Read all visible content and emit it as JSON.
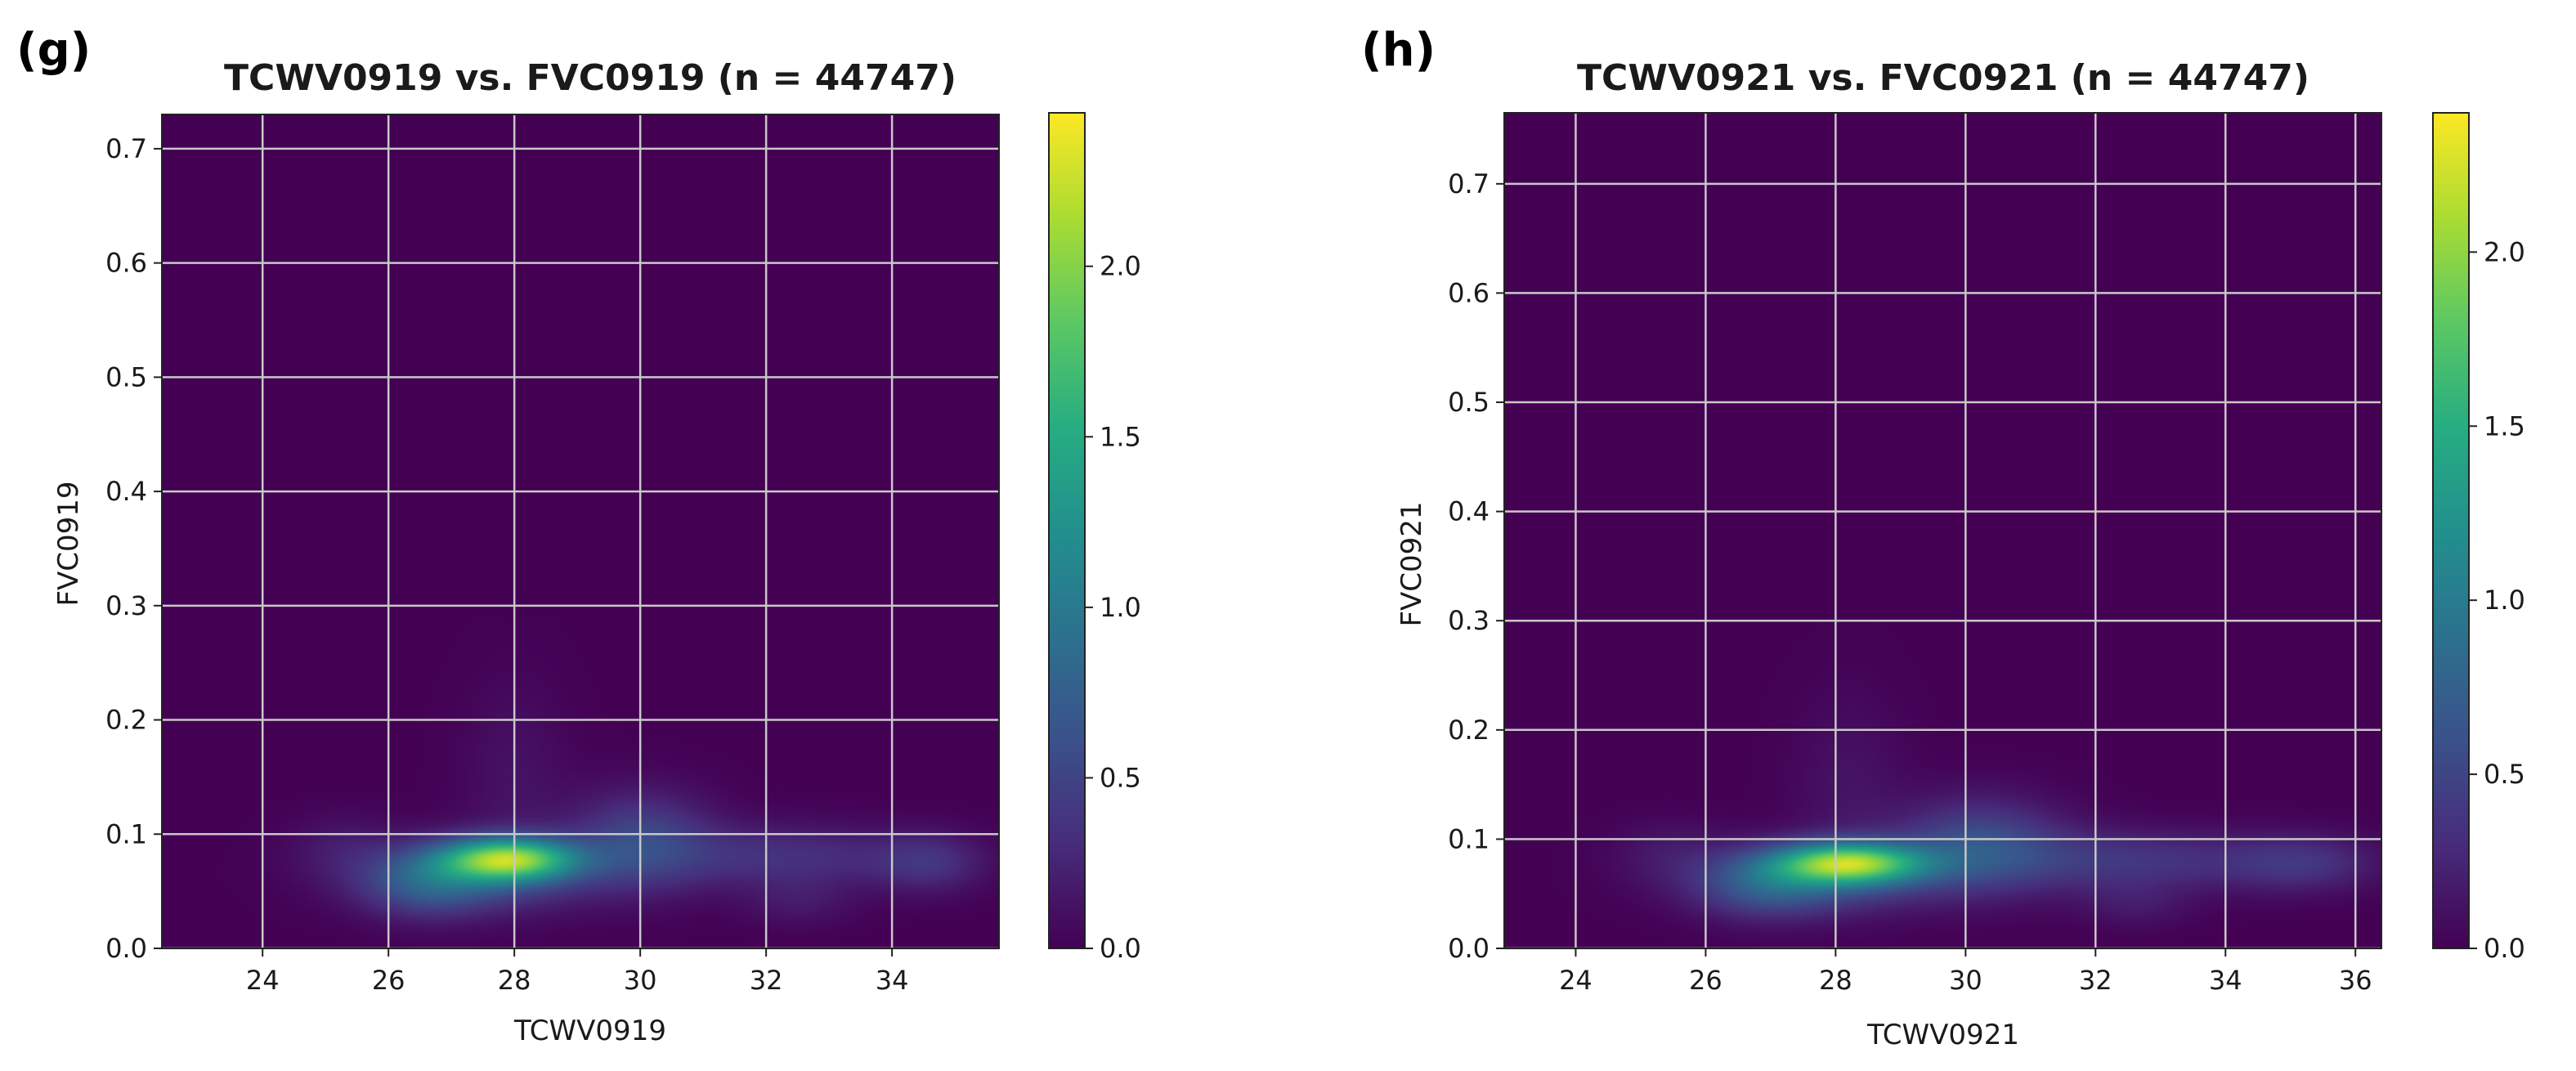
{
  "chart_data": [
    {
      "type": "heatmap",
      "panel_label": "(g)",
      "title": "TCWV0919 vs. FVC0919 (n = 44747)",
      "xlabel": "TCWV0919",
      "ylabel": "FVC0919",
      "xlim": [
        22.4,
        35.7
      ],
      "ylim": [
        0.0,
        0.73
      ],
      "xticks": [
        24,
        26,
        28,
        30,
        32,
        34
      ],
      "yticks": [
        0.0,
        0.1,
        0.2,
        0.3,
        0.4,
        0.5,
        0.6,
        0.7
      ],
      "grid": true,
      "colorbar": {
        "min": 0.0,
        "max": 2.45,
        "ticks": [
          0.0,
          0.5,
          1.0,
          1.5,
          2.0
        ],
        "colormap": "viridis"
      },
      "density_blobs": [
        {
          "x": 27.9,
          "y": 0.078,
          "sx": 0.75,
          "sy": 0.013,
          "amp": 1.75
        },
        {
          "x": 27.4,
          "y": 0.065,
          "sx": 1.3,
          "sy": 0.022,
          "amp": 0.55
        },
        {
          "x": 26.6,
          "y": 0.055,
          "sx": 0.7,
          "sy": 0.02,
          "amp": 0.45
        },
        {
          "x": 30.0,
          "y": 0.095,
          "sx": 0.8,
          "sy": 0.03,
          "amp": 0.5
        },
        {
          "x": 32.3,
          "y": 0.08,
          "sx": 1.5,
          "sy": 0.02,
          "amp": 0.35
        },
        {
          "x": 34.6,
          "y": 0.075,
          "sx": 0.6,
          "sy": 0.018,
          "amp": 0.3
        },
        {
          "x": 32.5,
          "y": 0.04,
          "sx": 0.6,
          "sy": 0.015,
          "amp": 0.15
        },
        {
          "x": 28.0,
          "y": 0.15,
          "sx": 0.6,
          "sy": 0.06,
          "amp": 0.12
        },
        {
          "x": 25.2,
          "y": 0.09,
          "sx": 0.6,
          "sy": 0.02,
          "amp": 0.14
        }
      ]
    },
    {
      "type": "heatmap",
      "panel_label": "(h)",
      "title": "TCWV0921 vs. FVC0921 (n = 44747)",
      "xlabel": "TCWV0921",
      "ylabel": "FVC0921",
      "xlim": [
        22.9,
        36.4
      ],
      "ylim": [
        0.0,
        0.765
      ],
      "xticks": [
        24,
        26,
        28,
        30,
        32,
        34,
        36
      ],
      "yticks": [
        0.0,
        0.1,
        0.2,
        0.3,
        0.4,
        0.5,
        0.6,
        0.7
      ],
      "grid": true,
      "colorbar": {
        "min": 0.0,
        "max": 2.4,
        "ticks": [
          0.0,
          0.5,
          1.0,
          1.5,
          2.0
        ],
        "colormap": "viridis"
      },
      "density_blobs": [
        {
          "x": 28.2,
          "y": 0.078,
          "sx": 0.8,
          "sy": 0.013,
          "amp": 1.7
        },
        {
          "x": 27.7,
          "y": 0.065,
          "sx": 1.3,
          "sy": 0.022,
          "amp": 0.55
        },
        {
          "x": 26.9,
          "y": 0.055,
          "sx": 0.7,
          "sy": 0.02,
          "amp": 0.4
        },
        {
          "x": 30.2,
          "y": 0.095,
          "sx": 0.9,
          "sy": 0.03,
          "amp": 0.55
        },
        {
          "x": 32.5,
          "y": 0.08,
          "sx": 1.6,
          "sy": 0.02,
          "amp": 0.38
        },
        {
          "x": 35.2,
          "y": 0.078,
          "sx": 0.8,
          "sy": 0.018,
          "amp": 0.32
        },
        {
          "x": 32.6,
          "y": 0.04,
          "sx": 0.6,
          "sy": 0.015,
          "amp": 0.15
        },
        {
          "x": 28.2,
          "y": 0.15,
          "sx": 0.6,
          "sy": 0.06,
          "amp": 0.12
        },
        {
          "x": 25.4,
          "y": 0.09,
          "sx": 0.6,
          "sy": 0.02,
          "amp": 0.13
        }
      ]
    }
  ]
}
